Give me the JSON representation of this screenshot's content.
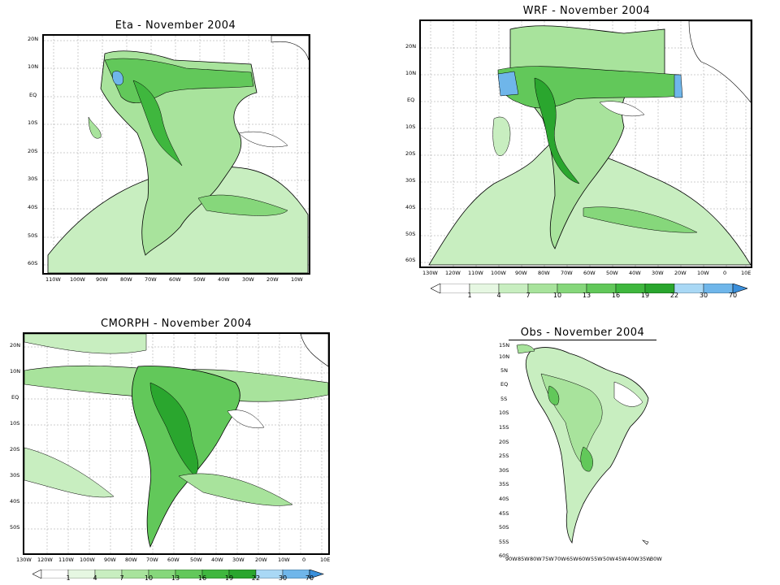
{
  "panels": [
    {
      "id": "eta",
      "title": "Eta - November 2004",
      "lat_ticks": [
        "20N",
        "10N",
        "EQ",
        "10S",
        "20S",
        "30S",
        "40S",
        "50S",
        "60S"
      ],
      "lon_ticks": [
        "110W",
        "100W",
        "90W",
        "80W",
        "70W",
        "60W",
        "50W",
        "40W",
        "30W",
        "20W",
        "10W"
      ]
    },
    {
      "id": "wrf",
      "title": "WRF - November 2004",
      "lat_ticks": [
        "20N",
        "10N",
        "EQ",
        "10S",
        "20S",
        "30S",
        "40S",
        "50S",
        "60S"
      ],
      "lon_ticks": [
        "130W",
        "120W",
        "110W",
        "100W",
        "90W",
        "80W",
        "70W",
        "60W",
        "50W",
        "40W",
        "30W",
        "20W",
        "10W",
        "0",
        "10E"
      ]
    },
    {
      "id": "cmorph",
      "title": "CMORPH - November 2004",
      "lat_ticks": [
        "20N",
        "10N",
        "EQ",
        "10S",
        "20S",
        "30S",
        "40S",
        "50S"
      ],
      "lon_ticks": [
        "130W",
        "120W",
        "110W",
        "100W",
        "90W",
        "80W",
        "70W",
        "60W",
        "50W",
        "40W",
        "30W",
        "20W",
        "10W",
        "0",
        "10E"
      ]
    },
    {
      "id": "obs",
      "title": "Obs - November 2004",
      "lat_ticks": [
        "15N",
        "10N",
        "5N",
        "EQ",
        "5S",
        "10S",
        "15S",
        "20S",
        "25S",
        "30S",
        "35S",
        "40S",
        "45S",
        "50S",
        "55S",
        "60S"
      ],
      "lon_ticks": [
        "90W",
        "85W",
        "80W",
        "75W",
        "70W",
        "65W",
        "60W",
        "55W",
        "50W",
        "45W",
        "40W",
        "35W",
        "30W"
      ]
    }
  ],
  "colorbar": {
    "levels": [
      "1",
      "4",
      "7",
      "10",
      "13",
      "16",
      "19",
      "22",
      "30",
      "70"
    ],
    "colors": [
      "#ffffff",
      "#e6f7e2",
      "#c8eec0",
      "#a8e39c",
      "#86d77b",
      "#62c85a",
      "#3fb73e",
      "#2aa62e",
      "#a9d8f5",
      "#6fb6ea",
      "#3a8fdb"
    ]
  },
  "map_colors": {
    "ocean": "#ffffff",
    "land_outline": "#000000",
    "grid": "#9a9a9a"
  }
}
